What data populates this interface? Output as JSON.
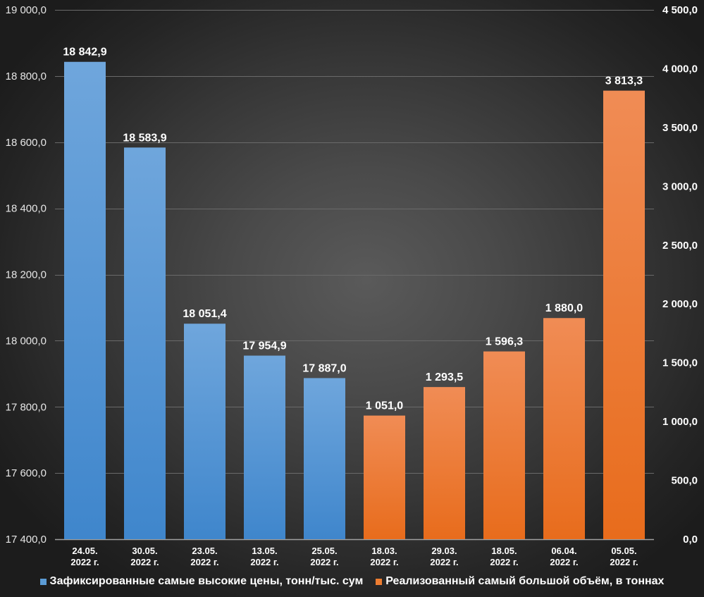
{
  "chart_data": {
    "type": "bar",
    "title": "",
    "xlabel": "",
    "ylabel": "",
    "categories": [
      [
        "24.05.",
        "2022 г."
      ],
      [
        "30.05.",
        "2022 г."
      ],
      [
        "23.05.",
        "2022 г."
      ],
      [
        "13.05.",
        "2022 г."
      ],
      [
        "25.05.",
        "2022 г."
      ],
      [
        "18.03.",
        "2022 г."
      ],
      [
        "29.03.",
        "2022 г."
      ],
      [
        "18.05.",
        "2022 г."
      ],
      [
        "06.04.",
        "2022 г."
      ],
      [
        "05.05.",
        "2022 г."
      ]
    ],
    "series": [
      {
        "name": "Зафиксированные самые высокие цены, тонн/тыс. сум",
        "axis": "left",
        "color": "#5b9bd5",
        "color_top": "#6fa6dc",
        "color_bottom": "#3f86cc",
        "values": [
          18842.9,
          18583.9,
          18051.4,
          17954.9,
          17887.0,
          null,
          null,
          null,
          null,
          null
        ],
        "labels": [
          "18 842,9",
          "18 583,9",
          "18 051,4",
          "17 954,9",
          "17 887,0",
          null,
          null,
          null,
          null,
          null
        ]
      },
      {
        "name": "Реализованный самый большой объём, в тоннах",
        "axis": "right",
        "color": "#ed7d31",
        "color_top": "#f08c55",
        "color_bottom": "#e86c1c",
        "values": [
          null,
          null,
          null,
          null,
          null,
          1051.0,
          1293.5,
          1596.3,
          1880.0,
          3813.3
        ],
        "labels": [
          null,
          null,
          null,
          null,
          null,
          "1 051,0",
          "1 293,5",
          "1 596,3",
          "1 880,0",
          "3 813,3"
        ]
      }
    ],
    "y_left": {
      "range": [
        17400,
        19000
      ],
      "ticks": [
        17400,
        17600,
        17800,
        18000,
        18200,
        18400,
        18600,
        18800,
        19000
      ],
      "tick_labels": [
        "17 400,0",
        "17 600,0",
        "17 800,0",
        "18 000,0",
        "18 200,0",
        "18 400,0",
        "18 600,0",
        "18 800,0",
        "19 000,0"
      ]
    },
    "y_right": {
      "range": [
        0,
        4500
      ],
      "ticks": [
        0,
        500,
        1000,
        1500,
        2000,
        2500,
        3000,
        3500,
        4000,
        4500
      ],
      "tick_labels": [
        "0,0",
        "500,0",
        "1 000,0",
        "1 500,0",
        "2 000,0",
        "2 500,0",
        "3 000,0",
        "3 500,0",
        "4 000,0",
        "4 500,0"
      ]
    },
    "grid": true,
    "legend_position": "bottom"
  },
  "legend": {
    "items": [
      {
        "label": "Зафиксированные самые высокие цены, тонн/тыс. сум",
        "color": "#5b9bd5"
      },
      {
        "label": "Реализованный самый большой объём, в тоннах",
        "color": "#ed7d31"
      }
    ]
  },
  "colors": {
    "gridline": "#6a6a6a",
    "baseline": "#a0a0a0"
  }
}
